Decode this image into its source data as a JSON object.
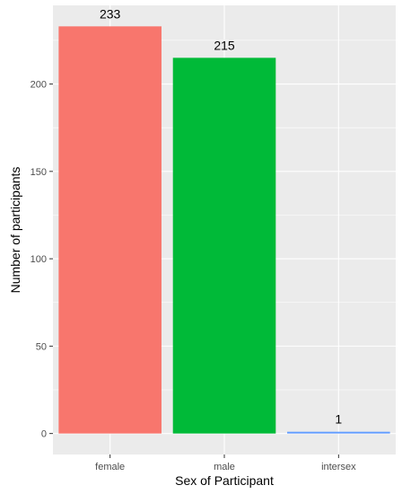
{
  "chart_data": {
    "type": "bar",
    "categories": [
      "female",
      "male",
      "intersex"
    ],
    "values": [
      233,
      215,
      1
    ],
    "data_labels": [
      "233",
      "215",
      "1"
    ],
    "colors": [
      "#F8766D",
      "#00BA38",
      "#619CFF"
    ],
    "xlabel": "Sex of Participant",
    "ylabel": "Number of participants",
    "ylim": [
      -12,
      245
    ],
    "yticks": [
      0,
      50,
      100,
      150,
      200
    ],
    "ytick_labels": [
      "0",
      "50",
      "100",
      "150",
      "200"
    ],
    "grid": true,
    "legend": "none",
    "panel_color": "#EBEBEB",
    "grid_color": "#FFFFFF"
  }
}
